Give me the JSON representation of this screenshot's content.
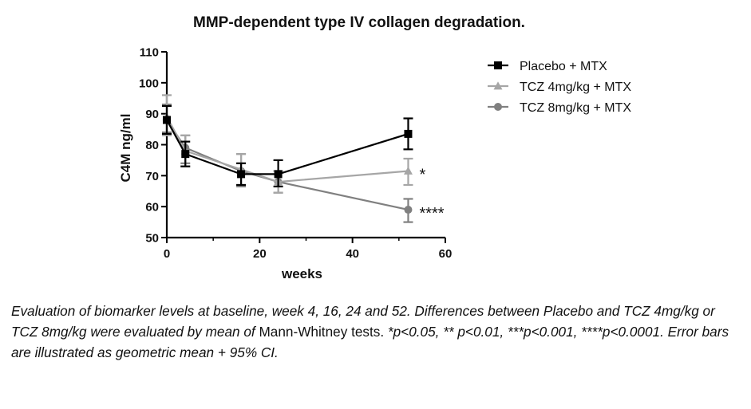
{
  "chart_data": {
    "type": "line",
    "title": "MMP-dependent type IV collagen degradation.",
    "xlabel": "weeks",
    "ylabel": "C4M ng/ml",
    "xlim": [
      0,
      60
    ],
    "ylim": [
      50,
      110
    ],
    "xticks": [
      0,
      20,
      40,
      60
    ],
    "yticks": [
      50,
      60,
      70,
      80,
      90,
      100,
      110
    ],
    "legend_position": "top-right",
    "series": [
      {
        "name": "Placebo + MTX",
        "marker": "square",
        "color": "#000000",
        "x": [
          0,
          4,
          16,
          24,
          52
        ],
        "y": [
          88,
          77,
          70.5,
          70.5,
          83.5
        ],
        "err_low": [
          83.5,
          73,
          67,
          66.5,
          78.5
        ],
        "err_high": [
          92.5,
          81,
          74,
          75,
          88.5
        ],
        "annotation": ""
      },
      {
        "name": "TCZ 4mg/kg + MTX",
        "marker": "triangle",
        "color": "#a6a6a6",
        "x": [
          0,
          4,
          16,
          24,
          52
        ],
        "y": [
          89,
          78,
          72,
          68,
          71.5
        ],
        "err_low": [
          83,
          73,
          67,
          64.5,
          67
        ],
        "err_high": [
          96,
          83,
          77,
          71.5,
          75.5
        ],
        "annotation": "*"
      },
      {
        "name": "TCZ 8mg/kg + MTX",
        "marker": "circle",
        "color": "#808080",
        "x": [
          0,
          4,
          16,
          24,
          52
        ],
        "y": [
          88,
          79,
          71.5,
          68,
          59
        ],
        "err_low": [
          84,
          74,
          66.5,
          64.5,
          55
        ],
        "err_high": [
          93,
          83,
          77,
          71.5,
          62.5
        ],
        "annotation": "****"
      }
    ]
  },
  "caption": {
    "part1": "Evaluation of biomarker levels at baseline, week 4, 16, 24 and 52. Differences between Placebo and TCZ 4mg/kg or TCZ 8mg/kg were evaluated by mean of ",
    "part2": "Mann-Whitney tests.",
    "part3": " *p<0.05, ** p<0.01, ***p<0.001, ****p<0.0001. Error bars are illustrated as geometric mean + 95% CI."
  }
}
